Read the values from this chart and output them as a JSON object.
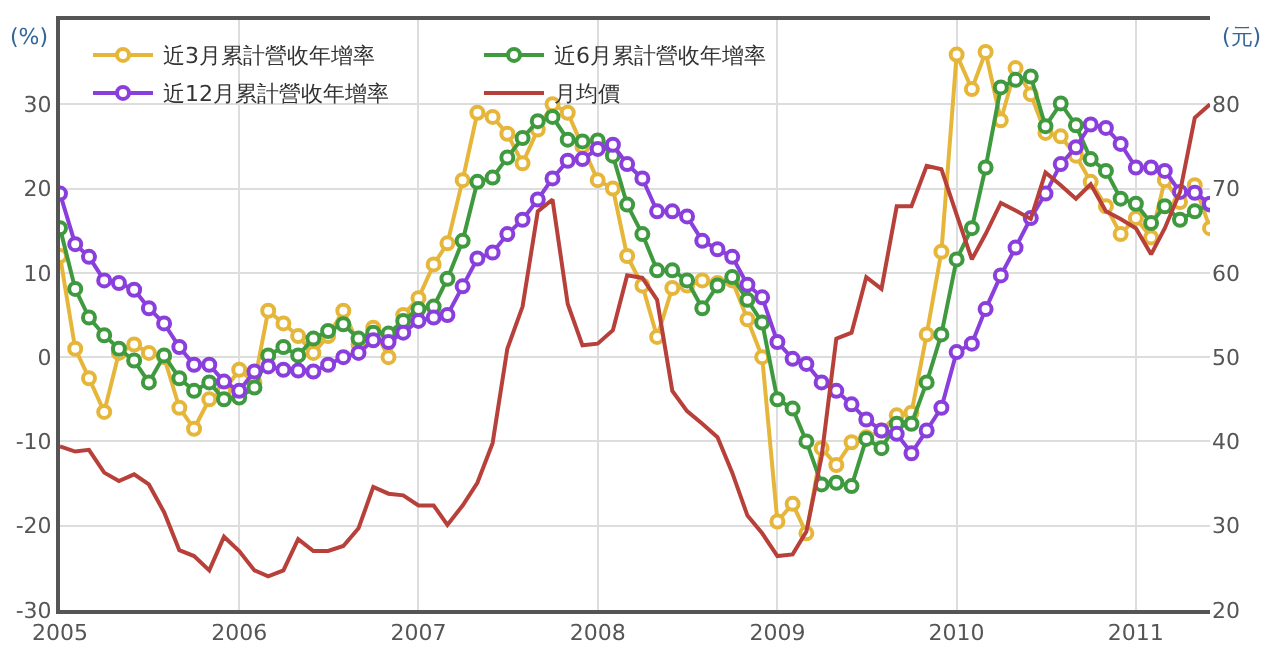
{
  "chart_data": {
    "type": "line",
    "x": [
      "2005-01",
      "2005-02",
      "2005-03",
      "2005-04",
      "2005-05",
      "2005-06",
      "2005-07",
      "2005-08",
      "2005-09",
      "2005-10",
      "2005-11",
      "2005-12",
      "2006-01",
      "2006-02",
      "2006-03",
      "2006-04",
      "2006-05",
      "2006-06",
      "2006-07",
      "2006-08",
      "2006-09",
      "2006-10",
      "2006-11",
      "2006-12",
      "2007-01",
      "2007-02",
      "2007-03",
      "2007-04",
      "2007-05",
      "2007-06",
      "2007-07",
      "2007-08",
      "2007-09",
      "2007-10",
      "2007-11",
      "2007-12",
      "2008-01",
      "2008-02",
      "2008-03",
      "2008-04",
      "2008-05",
      "2008-06",
      "2008-07",
      "2008-08",
      "2008-09",
      "2008-10",
      "2008-11",
      "2008-12",
      "2009-01",
      "2009-02",
      "2009-03",
      "2009-04",
      "2009-05",
      "2009-06",
      "2009-07",
      "2009-08",
      "2009-09",
      "2009-10",
      "2009-11",
      "2009-12",
      "2010-01",
      "2010-02",
      "2010-03",
      "2010-04",
      "2010-05",
      "2010-06",
      "2010-07",
      "2010-08",
      "2010-09",
      "2010-10",
      "2010-11",
      "2010-12",
      "2011-01",
      "2011-02",
      "2011-03",
      "2011-04",
      "2011-05",
      "2011-06"
    ],
    "series": [
      {
        "name": "近3月累計營收年增率",
        "color": "#e6b63a",
        "marker": "circle",
        "values": [
          12,
          1,
          -2.5,
          -6.5,
          0.5,
          1.5,
          0.5,
          0,
          -6,
          -8.5,
          -5,
          -4,
          -1.5,
          -3,
          5.5,
          4,
          2.5,
          0.5,
          2.5,
          5.5,
          1.5,
          3.5,
          0,
          5,
          7,
          11,
          13.5,
          21,
          29,
          28.5,
          26.5,
          23,
          27,
          30,
          29,
          25,
          21,
          20,
          12,
          8.5,
          2.4,
          8.2,
          8.5,
          9.1,
          8.8,
          9.1,
          4.5,
          0,
          -19.5,
          -17.4,
          -20.9,
          -10.8,
          -12.8,
          -10.1,
          -9.5,
          -8.7,
          -6.9,
          -6.6,
          2.7,
          12.5,
          35.9,
          31.8,
          36.2,
          28.1,
          34.3,
          31.2,
          26.6,
          26.2,
          23.9,
          20.8,
          17.9,
          14.6,
          16.5,
          14.2,
          21,
          18.4,
          20.4,
          15.3
        ]
      },
      {
        "name": "近6月累計營收年增率",
        "color": "#3f9a3f",
        "marker": "circle",
        "values": [
          15.3,
          8.1,
          4.7,
          2.6,
          1,
          -0.4,
          -3,
          0.2,
          -2.5,
          -4,
          -3,
          -5,
          -4.8,
          -3.6,
          0.2,
          1.2,
          0.2,
          2.2,
          3.1,
          3.9,
          2.2,
          2.9,
          2.8,
          4.3,
          5.7,
          6,
          9.3,
          13.8,
          20.8,
          21.3,
          23.7,
          26,
          28,
          28.5,
          25.8,
          25.6,
          25.7,
          23.9,
          18.1,
          14.6,
          10.3,
          10.3,
          9.1,
          5.8,
          8.5,
          9.5,
          6.8,
          4.1,
          -5,
          -6.1,
          -10,
          -15.1,
          -14.9,
          -15.3,
          -9.7,
          -10.8,
          -7.9,
          -7.9,
          -3,
          2.7,
          11.6,
          15.3,
          22.5,
          32,
          32.9,
          33.3,
          27.4,
          30.1,
          27.5,
          23.5,
          22.1,
          18.8,
          18.2,
          15.9,
          17.9,
          16.3,
          17.3,
          18.1
        ]
      },
      {
        "name": "近12月累計營收年增率",
        "color": "#8a3fdc",
        "marker": "circle",
        "values": [
          19.4,
          13.4,
          11.9,
          9.1,
          8.8,
          8,
          5.8,
          4,
          1.2,
          -0.9,
          -0.9,
          -2.9,
          -4,
          -1.7,
          -1.1,
          -1.5,
          -1.6,
          -1.7,
          -0.9,
          0,
          0.5,
          2,
          1.8,
          2.9,
          4.3,
          4.7,
          5,
          8.4,
          11.7,
          12.4,
          14.6,
          16.3,
          18.7,
          21.2,
          23.3,
          23.5,
          24.7,
          25.2,
          22.9,
          21.2,
          17.3,
          17.3,
          16.7,
          13.8,
          12.8,
          11.9,
          8.6,
          7.1,
          1.8,
          -0.2,
          -0.8,
          -3,
          -4,
          -5.6,
          -7.4,
          -8.7,
          -9.1,
          -11.4,
          -8.7,
          -6,
          0.6,
          1.6,
          5.7,
          9.7,
          13,
          16.5,
          19.4,
          22.9,
          24.9,
          27.6,
          27.2,
          25.3,
          22.5,
          22.5,
          22.1,
          19.6,
          19.5,
          18.2
        ]
      },
      {
        "name": "月均價",
        "color": "#b8403a",
        "marker": "none",
        "axis": "y2",
        "values": [
          39.4,
          38.8,
          39,
          36.3,
          35.3,
          36.1,
          34.9,
          31.6,
          27.1,
          26.4,
          24.7,
          28.7,
          27,
          24.7,
          24,
          24.7,
          28.4,
          27,
          27,
          27.6,
          29.7,
          34.6,
          33.8,
          33.6,
          32.4,
          32.4,
          30.1,
          32.4,
          35.1,
          39.8,
          51,
          56,
          67.3,
          68.7,
          56.3,
          51.4,
          51.6,
          53.2,
          59.7,
          59.4,
          56.8,
          46,
          43.6,
          42.1,
          40.5,
          36.3,
          31.2,
          29.1,
          26.4,
          26.6,
          29.3,
          38.2,
          52.2,
          52.9,
          59.5,
          58.1,
          67.9,
          67.9,
          72.7,
          72.3,
          66.9,
          61.6,
          64.6,
          68.3,
          67.4,
          66.4,
          71.9,
          70.4,
          68.8,
          70.5,
          67.3,
          66.4,
          65.3,
          62.2,
          65.3,
          69.6,
          78.4,
          80
        ]
      }
    ],
    "ylabel": "(%)",
    "y2label": "(元)",
    "xlim": [
      "2005-01",
      "2011-06"
    ],
    "xticks": [
      {
        "value": "2005-01",
        "label": "2005"
      },
      {
        "value": "2006-01",
        "label": "2006"
      },
      {
        "value": "2007-01",
        "label": "2007"
      },
      {
        "value": "2008-01",
        "label": "2008"
      },
      {
        "value": "2009-01",
        "label": "2009"
      },
      {
        "value": "2010-01",
        "label": "2010"
      },
      {
        "value": "2011-01",
        "label": "2011"
      }
    ],
    "ylim": [
      -30,
      40
    ],
    "yticks": [
      -30,
      -20,
      -10,
      0,
      10,
      20,
      30
    ],
    "y2lim": [
      20,
      90
    ],
    "y2ticks": [
      20,
      30,
      40,
      50,
      60,
      70,
      80
    ],
    "grid": true,
    "legend": "top left",
    "line_style": "solid"
  }
}
